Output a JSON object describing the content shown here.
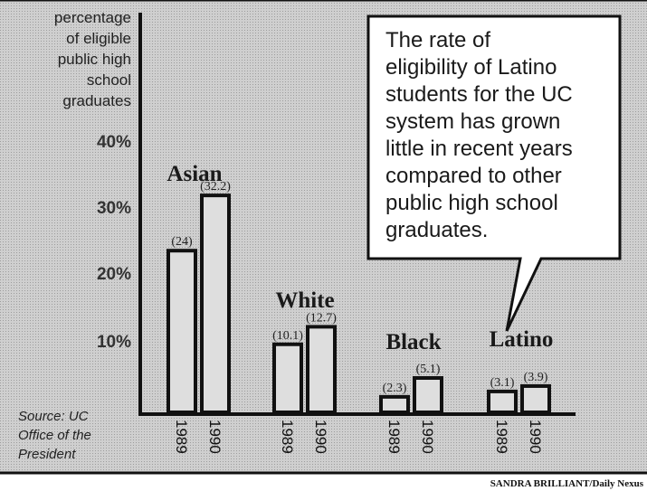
{
  "chart_data": {
    "type": "bar",
    "ylabel": [
      "percentage",
      "of eligible",
      "public high",
      "school",
      "graduates"
    ],
    "yticks": [
      "10%",
      "20%",
      "30%",
      "40%"
    ],
    "ylim": [
      0,
      40
    ],
    "categories": [
      "Asian",
      "White",
      "Black",
      "Latino"
    ],
    "years": [
      "1989",
      "1990"
    ],
    "series": [
      {
        "name": "1989",
        "values": [
          24,
          10.1,
          2.3,
          3.1
        ],
        "labels": [
          "(24)",
          "(10.1)",
          "(2.3)",
          "(3.1)"
        ]
      },
      {
        "name": "1990",
        "values": [
          32.2,
          12.7,
          5.1,
          3.9
        ],
        "labels": [
          "(32.2)",
          "(12.7)",
          "(5.1)",
          "(3.9)"
        ]
      }
    ],
    "grid": false,
    "legend": "none"
  },
  "source": [
    "Source: UC",
    "Office of the",
    "President"
  ],
  "callout": [
    "The rate of",
    "eligibility of Latino",
    "students for the UC",
    "system has grown",
    "little in recent years",
    "compared to other",
    "public high school",
    "graduates."
  ],
  "credit": "SANDRA BRILLIANT/Daily Nexus",
  "colors": {
    "background": "#cfcfcf",
    "bar_fill": "#dedede",
    "ink": "#111111"
  }
}
